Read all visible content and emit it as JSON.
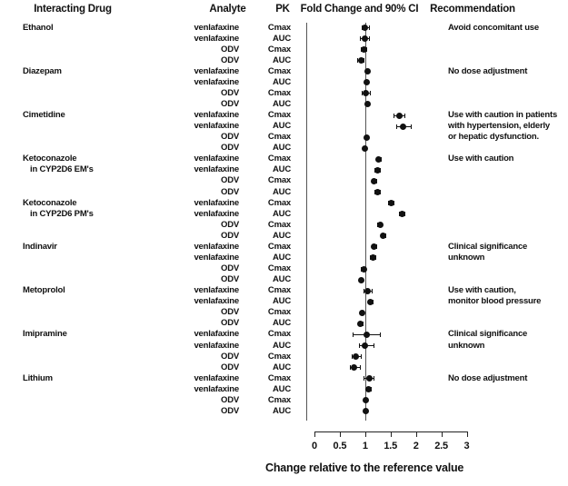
{
  "header": {
    "col_drug": "Interacting Drug",
    "col_analyte": "Analyte",
    "col_pk": "PK",
    "col_fold": "Fold Change and 90% CI",
    "col_rec": "Recommendation"
  },
  "colors": {
    "marker": "#111111",
    "line": "#555555",
    "text": "#111111"
  },
  "chart_data": {
    "type": "forest",
    "xlabel": "Change relative to the reference value",
    "xlim": [
      0,
      3
    ],
    "x_ticks": [
      0,
      0.5,
      1,
      1.5,
      2,
      2.5,
      3
    ],
    "x_tick_labels": [
      "0",
      "0.5",
      "1",
      "1.5",
      "2",
      "2.5",
      "3"
    ],
    "reference_line": 1,
    "grid": false,
    "rows": [
      {
        "drug": "Ethanol",
        "analyte": "venlafaxine",
        "pk": "Cmax",
        "value": 1.0,
        "ci": [
          0.93,
          1.1
        ],
        "rec": "Avoid concomitant use"
      },
      {
        "analyte": "venlafaxine",
        "pk": "AUC",
        "value": 0.99,
        "ci": [
          0.89,
          1.09
        ]
      },
      {
        "analyte": "ODV",
        "pk": "Cmax",
        "value": 0.97,
        "ci": [
          0.91,
          1.03
        ]
      },
      {
        "analyte": "ODV",
        "pk": "AUC",
        "value": 0.92,
        "ci": [
          0.85,
          0.99
        ]
      },
      {
        "drug": "Diazepam",
        "analyte": "venlafaxine",
        "pk": "Cmax",
        "value": 1.05,
        "ci": [
          1.01,
          1.09
        ],
        "rec": "No dose adjustment"
      },
      {
        "analyte": "venlafaxine",
        "pk": "AUC",
        "value": 1.03,
        "ci": [
          0.99,
          1.07
        ]
      },
      {
        "analyte": "ODV",
        "pk": "Cmax",
        "value": 1.01,
        "ci": [
          0.93,
          1.11
        ]
      },
      {
        "analyte": "ODV",
        "pk": "AUC",
        "value": 1.04,
        "ci": [
          1.0,
          1.08
        ]
      },
      {
        "drug": "Cimetidine",
        "analyte": "venlafaxine",
        "pk": "Cmax",
        "value": 1.67,
        "ci": [
          1.56,
          1.79
        ],
        "rec": "Use with caution in patients"
      },
      {
        "analyte": "venlafaxine",
        "pk": "AUC",
        "value": 1.74,
        "ci": [
          1.61,
          1.92
        ],
        "rec": "with hypertension, elderly"
      },
      {
        "analyte": "ODV",
        "pk": "Cmax",
        "value": 1.03,
        "ci": [
          0.99,
          1.07
        ],
        "rec": "or hepatic dysfunction."
      },
      {
        "analyte": "ODV",
        "pk": "AUC",
        "value": 1.0,
        "ci": [
          0.96,
          1.04
        ]
      },
      {
        "drug": "Ketoconazole",
        "analyte": "venlafaxine",
        "pk": "Cmax",
        "value": 1.27,
        "ci": [
          1.21,
          1.33
        ],
        "rec": "Use with caution"
      },
      {
        "drug": "in CYP2D6 EM's",
        "indent": true,
        "analyte": "venlafaxine",
        "pk": "AUC",
        "value": 1.24,
        "ci": [
          1.18,
          1.3
        ]
      },
      {
        "analyte": "ODV",
        "pk": "Cmax",
        "value": 1.18,
        "ci": [
          1.12,
          1.24
        ]
      },
      {
        "analyte": "ODV",
        "pk": "AUC",
        "value": 1.25,
        "ci": [
          1.19,
          1.31
        ]
      },
      {
        "drug": "Ketoconazole",
        "analyte": "venlafaxine",
        "pk": "Cmax",
        "value": 1.51,
        "ci": [
          1.45,
          1.57
        ]
      },
      {
        "drug": "in CYP2D6 PM's",
        "indent": true,
        "analyte": "venlafaxine",
        "pk": "AUC",
        "value": 1.73,
        "ci": [
          1.67,
          1.79
        ]
      },
      {
        "analyte": "ODV",
        "pk": "Cmax",
        "value": 1.29,
        "ci": [
          1.23,
          1.35
        ]
      },
      {
        "analyte": "ODV",
        "pk": "AUC",
        "value": 1.36,
        "ci": [
          1.3,
          1.42
        ]
      },
      {
        "drug": "Indinavir",
        "analyte": "venlafaxine",
        "pk": "Cmax",
        "value": 1.18,
        "ci": [
          1.12,
          1.24
        ],
        "rec": "Clinical significance"
      },
      {
        "analyte": "venlafaxine",
        "pk": "AUC",
        "value": 1.16,
        "ci": [
          1.1,
          1.22
        ],
        "rec": "unknown"
      },
      {
        "analyte": "ODV",
        "pk": "Cmax",
        "value": 0.97,
        "ci": [
          0.92,
          1.02
        ]
      },
      {
        "analyte": "ODV",
        "pk": "AUC",
        "value": 0.92,
        "ci": [
          0.87,
          0.97
        ]
      },
      {
        "drug": "Metoprolol",
        "analyte": "venlafaxine",
        "pk": "Cmax",
        "value": 1.05,
        "ci": [
          0.96,
          1.15
        ],
        "rec": "Use with caution,"
      },
      {
        "analyte": "venlafaxine",
        "pk": "AUC",
        "value": 1.11,
        "ci": [
          1.06,
          1.16
        ],
        "rec": "monitor blood pressure"
      },
      {
        "analyte": "ODV",
        "pk": "Cmax",
        "value": 0.94,
        "ci": [
          0.89,
          0.99
        ]
      },
      {
        "analyte": "ODV",
        "pk": "AUC",
        "value": 0.91,
        "ci": [
          0.86,
          0.96
        ]
      },
      {
        "drug": "Imipramine",
        "analyte": "venlafaxine",
        "pk": "Cmax",
        "value": 1.03,
        "ci": [
          0.76,
          1.3
        ],
        "rec": "Clinical significance"
      },
      {
        "analyte": "venlafaxine",
        "pk": "AUC",
        "value": 1.0,
        "ci": [
          0.88,
          1.18
        ],
        "rec": "unknown"
      },
      {
        "analyte": "ODV",
        "pk": "Cmax",
        "value": 0.82,
        "ci": [
          0.73,
          0.94
        ]
      },
      {
        "analyte": "ODV",
        "pk": "AUC",
        "value": 0.78,
        "ci": [
          0.69,
          0.91
        ]
      },
      {
        "drug": "Lithium",
        "analyte": "venlafaxine",
        "pk": "Cmax",
        "value": 1.09,
        "ci": [
          0.97,
          1.19
        ],
        "rec": "No dose adjustment"
      },
      {
        "analyte": "venlafaxine",
        "pk": "AUC",
        "value": 1.07,
        "ci": [
          1.02,
          1.12
        ]
      },
      {
        "analyte": "ODV",
        "pk": "Cmax",
        "value": 1.02,
        "ci": [
          0.98,
          1.06
        ]
      },
      {
        "analyte": "ODV",
        "pk": "AUC",
        "value": 1.02,
        "ci": [
          0.98,
          1.06
        ]
      }
    ]
  }
}
